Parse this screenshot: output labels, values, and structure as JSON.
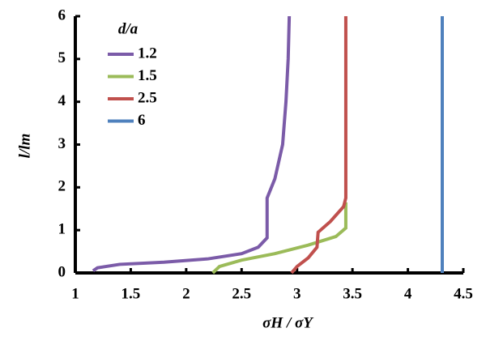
{
  "chart_data": {
    "type": "line",
    "x_label": "σH / σY",
    "y_label": "l/lm",
    "legend_title": "d/a",
    "xlim": [
      1,
      4.5
    ],
    "xticks": [
      1,
      1.5,
      2,
      2.5,
      3,
      3.5,
      4,
      4.5
    ],
    "ylim": [
      0,
      6
    ],
    "yticks": [
      0,
      1,
      2,
      3,
      4,
      5,
      6
    ],
    "grid": false,
    "legend": "upper left",
    "series": [
      {
        "name": "1.2",
        "color": "#7b5ba8",
        "x": [
          1.16,
          1.2,
          1.4,
          1.8,
          2.2,
          2.5,
          2.65,
          2.73,
          2.73,
          2.8,
          2.87,
          2.9,
          2.92,
          2.93
        ],
        "values": [
          0.05,
          0.12,
          0.2,
          0.25,
          0.33,
          0.45,
          0.6,
          0.82,
          1.75,
          2.2,
          3,
          4,
          5,
          6
        ]
      },
      {
        "name": "1.5",
        "color": "#9bbb59",
        "x": [
          2.24,
          2.3,
          2.5,
          2.8,
          3.1,
          3.35,
          3.44,
          3.44
        ],
        "values": [
          0,
          0.15,
          0.3,
          0.45,
          0.65,
          0.85,
          1.05,
          1.65
        ]
      },
      {
        "name": "2.5",
        "color": "#c0504d",
        "x": [
          2.95,
          3.0,
          3.1,
          3.18,
          3.19,
          3.3,
          3.42,
          3.44,
          3.44
        ],
        "values": [
          0,
          0.15,
          0.35,
          0.6,
          0.95,
          1.2,
          1.55,
          1.75,
          6
        ]
      },
      {
        "name": "6",
        "color": "#4f81bd",
        "x": [
          4.31,
          4.31
        ],
        "values": [
          0,
          6
        ]
      }
    ]
  }
}
